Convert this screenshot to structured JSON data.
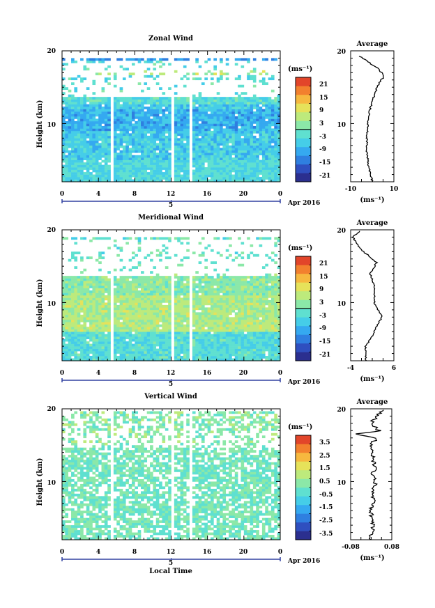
{
  "chart_data": [
    {
      "type": "heatmap",
      "title": "Zonal Wind",
      "xlabel": "",
      "ylabel": "Height (km)",
      "xlim": [
        0,
        24
      ],
      "ylim": [
        2,
        20
      ],
      "x_ticks": [
        "0",
        "4",
        "8",
        "12",
        "16",
        "20",
        "0"
      ],
      "y_ticks": [
        "10",
        "20"
      ],
      "date_label": "5",
      "date_note": "Apr 2016",
      "colorbar": {
        "unit": "(ms⁻¹)",
        "ticks": [
          "21",
          "15",
          "9",
          "3",
          "-3",
          "-9",
          "-15",
          "-21"
        ],
        "range": [
          -24,
          24
        ],
        "zero_line": 0
      },
      "profile": {
        "title": "Average",
        "xlabel": "(ms⁻¹)",
        "x_ticks": [
          "-10",
          "10"
        ],
        "xlim": [
          -10,
          10
        ],
        "y_ticks": [
          "10",
          "20"
        ],
        "heights": [
          2,
          4,
          6,
          8,
          10,
          12,
          14,
          15.5,
          16.5,
          17.5,
          18.5,
          19.3
        ],
        "values": [
          0,
          -1.5,
          -2.5,
          -2.5,
          -2,
          -1,
          1,
          3,
          5.5,
          3,
          -2,
          -6
        ]
      }
    },
    {
      "type": "heatmap",
      "title": "Meridional Wind",
      "xlabel": "",
      "ylabel": "Height (km)",
      "xlim": [
        0,
        24
      ],
      "ylim": [
        2,
        20
      ],
      "x_ticks": [
        "0",
        "4",
        "8",
        "12",
        "16",
        "20",
        "0"
      ],
      "y_ticks": [
        "10",
        "20"
      ],
      "date_label": "5",
      "date_note": "Apr 2016",
      "colorbar": {
        "unit": "(ms⁻¹)",
        "ticks": [
          "21",
          "15",
          "9",
          "3",
          "-3",
          "-9",
          "-15",
          "-21"
        ],
        "range": [
          -24,
          24
        ],
        "zero_line": 0
      },
      "profile": {
        "title": "Average",
        "xlabel": "(ms⁻¹)",
        "x_ticks": [
          "-4",
          "6"
        ],
        "xlim": [
          -4,
          6
        ],
        "y_ticks": [
          "10",
          "20"
        ],
        "heights": [
          2,
          4,
          6,
          8,
          10,
          12,
          13,
          14,
          15.5,
          17,
          18,
          19,
          19.8
        ],
        "values": [
          -0.5,
          -0.5,
          1.5,
          3.2,
          1.5,
          1.5,
          1.2,
          0.5,
          2,
          -1,
          -2.5,
          -3.5,
          -2
        ]
      }
    },
    {
      "type": "heatmap",
      "title": "Vertical Wind",
      "xlabel": "Local Time",
      "ylabel": "Height (km)",
      "xlim": [
        0,
        24
      ],
      "ylim": [
        2,
        20
      ],
      "x_ticks": [
        "0",
        "4",
        "8",
        "12",
        "16",
        "20",
        "0"
      ],
      "y_ticks": [
        "10",
        "20"
      ],
      "date_label": "5",
      "date_note": "Apr 2016",
      "colorbar": {
        "unit": "(ms⁻¹)",
        "ticks": [
          "3.5",
          "2.5",
          "1.5",
          "0.5",
          "-0.5",
          "-1.5",
          "-2.5",
          "-3.5"
        ],
        "range": [
          -4,
          4
        ],
        "zero_line": null
      },
      "profile": {
        "title": "Average",
        "xlabel": "(ms⁻¹)",
        "x_ticks": [
          "-0.08",
          "0.08"
        ],
        "xlim": [
          -0.08,
          0.08
        ],
        "y_ticks": [
          "10",
          "20"
        ],
        "heights": [
          2,
          4,
          6,
          8,
          10,
          11,
          12,
          13,
          14,
          15,
          16,
          16.5,
          17,
          18,
          19,
          19.8
        ],
        "values": [
          0.0,
          0.005,
          0.0,
          0.01,
          0.015,
          0.0,
          0.02,
          0.005,
          0.01,
          0.0,
          0.02,
          -0.06,
          0.03,
          0.0,
          0.02,
          0.04
        ]
      }
    }
  ]
}
